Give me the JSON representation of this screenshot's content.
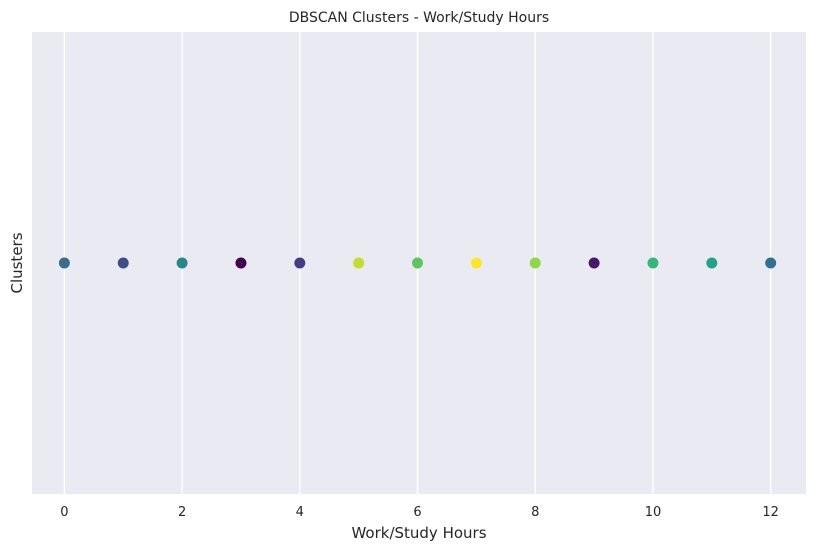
{
  "chart_data": {
    "type": "scatter",
    "title": "DBSCAN Clusters - Work/Study Hours",
    "xlabel": "Work/Study Hours",
    "ylabel": "Clusters",
    "xlim": [
      -0.55,
      12.6
    ],
    "ylim": [
      -1,
      1
    ],
    "x_ticks": [
      0,
      2,
      4,
      6,
      8,
      10,
      12
    ],
    "grid": true,
    "background": "#eaeaf2",
    "grid_color": "#ffffff",
    "points": [
      {
        "x": 0,
        "y": 0,
        "color": "#3b6c8e"
      },
      {
        "x": 1,
        "y": 0,
        "color": "#3e4d87"
      },
      {
        "x": 2,
        "y": 0,
        "color": "#25878c"
      },
      {
        "x": 3,
        "y": 0,
        "color": "#440154"
      },
      {
        "x": 4,
        "y": 0,
        "color": "#433d84"
      },
      {
        "x": 5,
        "y": 0,
        "color": "#c8dc2a"
      },
      {
        "x": 6,
        "y": 0,
        "color": "#5ec660"
      },
      {
        "x": 7,
        "y": 0,
        "color": "#fde725"
      },
      {
        "x": 8,
        "y": 0,
        "color": "#8fd744"
      },
      {
        "x": 9,
        "y": 0,
        "color": "#47186a"
      },
      {
        "x": 10,
        "y": 0,
        "color": "#35b779"
      },
      {
        "x": 11,
        "y": 0,
        "color": "#22a384"
      },
      {
        "x": 12,
        "y": 0,
        "color": "#31708e"
      }
    ]
  }
}
